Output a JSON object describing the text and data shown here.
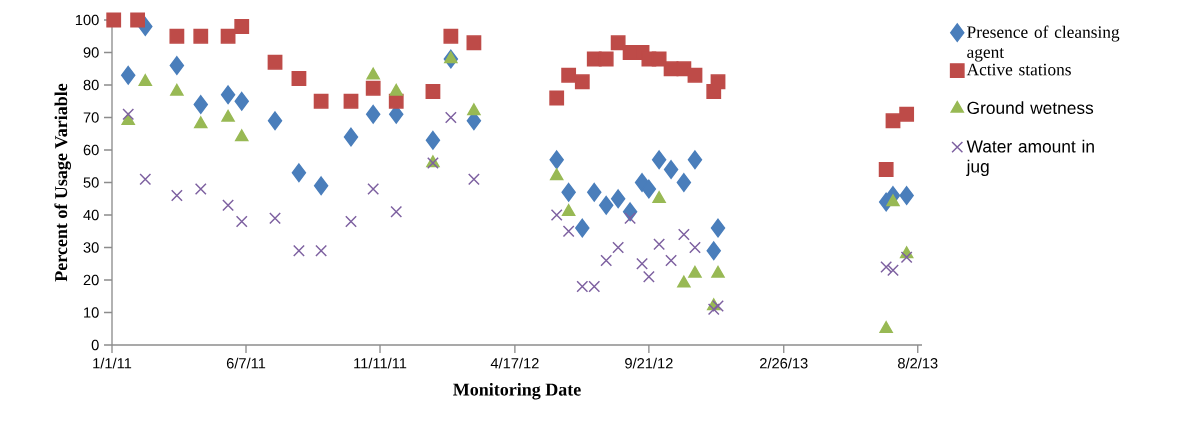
{
  "chart_data": {
    "type": "scatter",
    "xlabel": "Monitoring Date",
    "ylabel": "Percent of Usage Variable",
    "xlim": [
      "2011-01-01",
      "2013-08-07"
    ],
    "xticks": [
      {
        "value": "2011-01-01",
        "label": "1/1/11"
      },
      {
        "value": "2011-06-07",
        "label": "6/7/11"
      },
      {
        "value": "2011-11-11",
        "label": "11/11/11"
      },
      {
        "value": "2012-04-17",
        "label": "4/17/12"
      },
      {
        "value": "2012-09-21",
        "label": "9/21/12"
      },
      {
        "value": "2013-02-26",
        "label": "2/26/13"
      },
      {
        "value": "2013-08-02",
        "label": "8/2/13"
      }
    ],
    "ylim": [
      0,
      100
    ],
    "yticks": [
      0,
      10,
      20,
      30,
      40,
      50,
      60,
      70,
      80,
      90,
      100
    ],
    "grid": false,
    "legend": "right",
    "series": [
      {
        "name": "Presence of cleansing agent",
        "color": "#4a7ebb",
        "marker": "diamond",
        "x": [
          "2011-01-20",
          "2011-02-09",
          "2011-03-18",
          "2011-04-15",
          "2011-05-17",
          "2011-06-02",
          "2011-07-11",
          "2011-08-08",
          "2011-09-03",
          "2011-10-08",
          "2011-11-03",
          "2011-11-30",
          "2012-01-12",
          "2012-02-02",
          "2012-02-29",
          "2012-06-05",
          "2012-06-19",
          "2012-07-05",
          "2012-07-19",
          "2012-08-02",
          "2012-08-16",
          "2012-08-30",
          "2012-09-13",
          "2012-09-21",
          "2012-10-03",
          "2012-10-17",
          "2012-11-01",
          "2012-11-14",
          "2012-12-06",
          "2012-12-11",
          "2013-06-26",
          "2013-07-04",
          "2013-07-20"
        ],
        "values": [
          83,
          98,
          86,
          74,
          77,
          75,
          69,
          53,
          49,
          64,
          71,
          71,
          63,
          88,
          69,
          57,
          47,
          36,
          47,
          43,
          45,
          41,
          50,
          48,
          57,
          54,
          50,
          57,
          29,
          36,
          44,
          46,
          46
        ]
      },
      {
        "name": "Active stations",
        "color": "#be4b48",
        "marker": "square",
        "x": [
          "2011-01-03",
          "2011-01-31",
          "2011-03-18",
          "2011-04-15",
          "2011-05-17",
          "2011-06-02",
          "2011-07-11",
          "2011-08-08",
          "2011-09-03",
          "2011-10-08",
          "2011-11-03",
          "2011-11-30",
          "2012-01-12",
          "2012-02-02",
          "2012-02-29",
          "2012-06-05",
          "2012-06-19",
          "2012-07-05",
          "2012-07-19",
          "2012-08-02",
          "2012-08-16",
          "2012-08-30",
          "2012-09-13",
          "2012-09-21",
          "2012-10-03",
          "2012-10-17",
          "2012-11-01",
          "2012-11-14",
          "2012-12-06",
          "2012-12-11",
          "2013-06-26",
          "2013-07-04",
          "2013-07-20"
        ],
        "values": [
          100,
          100,
          95,
          95,
          95,
          98,
          87,
          82,
          75,
          75,
          79,
          75,
          78,
          95,
          93,
          76,
          83,
          81,
          88,
          88,
          93,
          90,
          90,
          88,
          88,
          85,
          85,
          83,
          78,
          81,
          54,
          69,
          71
        ]
      },
      {
        "name": "Ground wetness",
        "color": "#98b954",
        "marker": "triangle",
        "x": [
          "2011-01-20",
          "2011-02-09",
          "2011-03-18",
          "2011-04-15",
          "2011-05-17",
          "2011-06-02",
          "2011-11-03",
          "2011-11-30",
          "2012-01-12",
          "2012-02-02",
          "2012-02-29",
          "2012-06-05",
          "2012-06-19",
          "2012-10-03",
          "2012-11-01",
          "2012-11-14",
          "2012-12-06",
          "2012-12-11",
          "2013-06-26",
          "2013-07-04",
          "2013-07-20"
        ],
        "values": [
          69,
          81,
          78,
          68,
          70,
          64,
          83,
          78,
          56,
          88,
          72,
          52,
          41,
          45,
          19,
          22,
          12,
          22,
          5,
          44,
          28
        ]
      },
      {
        "name": "Water amount in jug",
        "color": "#7d60a0",
        "marker": "cross",
        "x": [
          "2011-01-20",
          "2011-02-09",
          "2011-03-18",
          "2011-04-15",
          "2011-05-17",
          "2011-06-02",
          "2011-07-11",
          "2011-08-08",
          "2011-09-03",
          "2011-10-08",
          "2011-11-03",
          "2011-11-30",
          "2012-01-12",
          "2012-02-02",
          "2012-02-29",
          "2012-06-05",
          "2012-06-19",
          "2012-07-05",
          "2012-07-19",
          "2012-08-02",
          "2012-08-16",
          "2012-08-30",
          "2012-09-13",
          "2012-09-21",
          "2012-10-03",
          "2012-10-17",
          "2012-11-01",
          "2012-11-14",
          "2012-12-06",
          "2012-12-11",
          "2013-06-26",
          "2013-07-04",
          "2013-07-20"
        ],
        "values": [
          71,
          51,
          46,
          48,
          43,
          38,
          39,
          29,
          29,
          38,
          48,
          41,
          56,
          70,
          51,
          40,
          35,
          18,
          18,
          26,
          30,
          39,
          25,
          21,
          31,
          26,
          34,
          30,
          11,
          12,
          24,
          23,
          27
        ]
      }
    ]
  }
}
